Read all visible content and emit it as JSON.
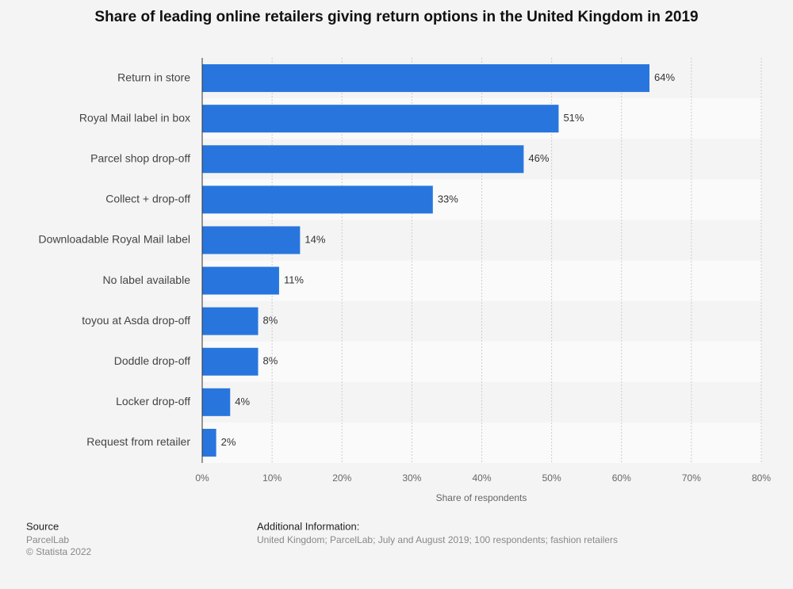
{
  "chart_data": {
    "type": "bar",
    "orientation": "horizontal",
    "title": "Share of leading online retailers giving return options in the United Kingdom in 2019",
    "categories": [
      "Return in store",
      "Royal Mail label in box",
      "Parcel shop drop-off",
      "Collect + drop-off",
      "Downloadable Royal Mail label",
      "No label available",
      "toyou at Asda drop-off",
      "Doddle drop-off",
      "Locker drop-off",
      "Request from retailer"
    ],
    "values": [
      64,
      51,
      46,
      33,
      14,
      11,
      8,
      8,
      4,
      2
    ],
    "value_labels": [
      "64%",
      "51%",
      "46%",
      "33%",
      "14%",
      "11%",
      "8%",
      "8%",
      "4%",
      "2%"
    ],
    "color": "#2876dd",
    "xlabel": "Share of respondents",
    "xlim": [
      0,
      80
    ],
    "xticks": [
      {
        "value": 0,
        "label": "0%"
      },
      {
        "value": 10,
        "label": "10%"
      },
      {
        "value": 20,
        "label": "20%"
      },
      {
        "value": 30,
        "label": "30%"
      },
      {
        "value": 40,
        "label": "40%"
      },
      {
        "value": 50,
        "label": "50%"
      },
      {
        "value": 60,
        "label": "60%"
      },
      {
        "value": 70,
        "label": "70%"
      },
      {
        "value": 80,
        "label": "80%"
      }
    ],
    "grid": true
  },
  "footer": {
    "source_title": "Source",
    "source": "ParcelLab",
    "copyright": "© Statista 2022",
    "info_title": "Additional Information:",
    "info": "United Kingdom; ParcelLab; July and August 2019; 100 respondents; fashion retailers"
  }
}
